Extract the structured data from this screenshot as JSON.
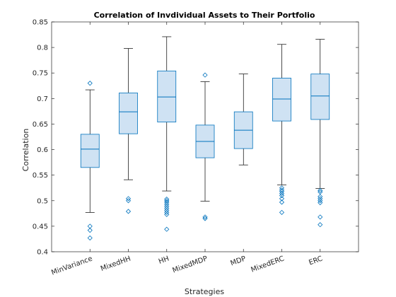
{
  "chart_data": {
    "type": "box",
    "title": "Correlation of Invdividual Assets to Their Portfolio",
    "xlabel": "Strategies",
    "ylabel": "Correlation",
    "ylim": [
      0.4,
      0.85
    ],
    "yticks": [
      "0.4",
      "0.45",
      "0.5",
      "0.55",
      "0.6",
      "0.65",
      "0.7",
      "0.75",
      "0.8",
      "0.85"
    ],
    "grid": false,
    "colors": {
      "box_fill": "#cfe2f3",
      "box_edge": "#0072bd",
      "whisker": "#000000",
      "axis": "#262626"
    },
    "categories": [
      "MinVariance",
      "MixedHH",
      "HH",
      "MixedMDP",
      "MDP",
      "MixedERC",
      "ERC"
    ],
    "boxes": [
      {
        "q1": 0.565,
        "median": 0.601,
        "q3": 0.63,
        "whisker_low": 0.477,
        "whisker_high": 0.717,
        "outliers": [
          0.73,
          0.45,
          0.442,
          0.427
        ]
      },
      {
        "q1": 0.631,
        "median": 0.674,
        "q3": 0.711,
        "whisker_low": 0.541,
        "whisker_high": 0.798,
        "outliers": [
          0.504,
          0.5,
          0.479
        ]
      },
      {
        "q1": 0.654,
        "median": 0.703,
        "q3": 0.754,
        "whisker_low": 0.519,
        "whisker_high": 0.821,
        "outliers": [
          0.503,
          0.5,
          0.497,
          0.493,
          0.489,
          0.485,
          0.481,
          0.477,
          0.473,
          0.444
        ]
      },
      {
        "q1": 0.584,
        "median": 0.616,
        "q3": 0.648,
        "whisker_low": 0.499,
        "whisker_high": 0.733,
        "outliers": [
          0.746,
          0.468,
          0.465
        ]
      },
      {
        "q1": 0.602,
        "median": 0.638,
        "q3": 0.674,
        "whisker_low": 0.57,
        "whisker_high": 0.748,
        "outliers": []
      },
      {
        "q1": 0.656,
        "median": 0.699,
        "q3": 0.74,
        "whisker_low": 0.531,
        "whisker_high": 0.806,
        "outliers": [
          0.525,
          0.521,
          0.518,
          0.514,
          0.51,
          0.504,
          0.497,
          0.477
        ]
      },
      {
        "q1": 0.659,
        "median": 0.705,
        "q3": 0.748,
        "whisker_low": 0.524,
        "whisker_high": 0.816,
        "outliers": [
          0.52,
          0.517,
          0.508,
          0.504,
          0.5,
          0.496,
          0.468,
          0.453
        ]
      }
    ]
  }
}
